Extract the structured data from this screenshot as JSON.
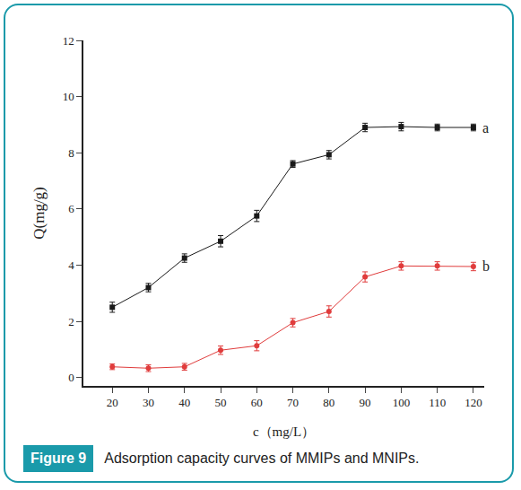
{
  "chart_data": {
    "type": "line",
    "x_label": "c（mg/L）",
    "y_label": "Q(mg/g)",
    "x": [
      20,
      30,
      40,
      50,
      60,
      70,
      80,
      90,
      100,
      110,
      120
    ],
    "series": [
      {
        "name": "a",
        "color": "#1a1a1a",
        "marker": "square",
        "values": [
          2.5,
          3.2,
          4.25,
          4.85,
          5.75,
          7.6,
          7.93,
          8.9,
          8.93,
          8.9,
          8.9
        ],
        "errors": [
          0.18,
          0.15,
          0.15,
          0.2,
          0.2,
          0.12,
          0.15,
          0.15,
          0.15,
          0.12,
          0.12
        ]
      },
      {
        "name": "b",
        "color": "#e03c3c",
        "marker": "circle",
        "values": [
          0.38,
          0.33,
          0.38,
          0.97,
          1.13,
          1.95,
          2.35,
          3.58,
          3.97,
          3.97,
          3.95
        ],
        "errors": [
          0.1,
          0.12,
          0.12,
          0.15,
          0.18,
          0.15,
          0.2,
          0.18,
          0.15,
          0.15,
          0.15
        ]
      }
    ],
    "xlim": [
      12,
      123
    ],
    "xticks": [
      20,
      30,
      40,
      50,
      60,
      70,
      80,
      90,
      100,
      110,
      120
    ],
    "ylim": [
      -0.3,
      12
    ],
    "yticks": [
      0,
      2,
      4,
      6,
      8,
      10,
      12
    ],
    "grid": false
  },
  "caption": {
    "label": "Figure 9",
    "text": "Adsorption capacity curves of MMIPs and MNIPs."
  }
}
